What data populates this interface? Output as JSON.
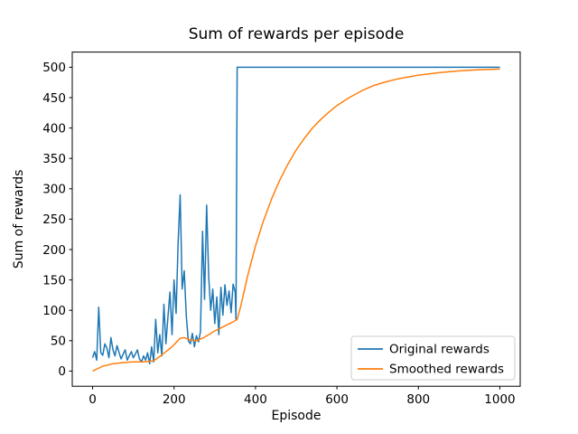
{
  "chart_data": {
    "type": "line",
    "title": "Sum of rewards per episode",
    "xlabel": "Episode",
    "ylabel": "Sum of rewards",
    "xlim": [
      -50,
      1050
    ],
    "ylim": [
      -25,
      525
    ],
    "xticks": [
      0,
      200,
      400,
      600,
      800,
      1000
    ],
    "yticks": [
      0,
      50,
      100,
      150,
      200,
      250,
      300,
      350,
      400,
      450,
      500
    ],
    "grid": false,
    "legend_position": "lower right",
    "series": [
      {
        "name": "Original rewards",
        "color": "#1f77b4",
        "points": [
          [
            0,
            22
          ],
          [
            5,
            32
          ],
          [
            10,
            18
          ],
          [
            15,
            105
          ],
          [
            20,
            30
          ],
          [
            25,
            26
          ],
          [
            30,
            45
          ],
          [
            35,
            38
          ],
          [
            40,
            22
          ],
          [
            45,
            55
          ],
          [
            50,
            35
          ],
          [
            55,
            25
          ],
          [
            60,
            42
          ],
          [
            65,
            30
          ],
          [
            70,
            20
          ],
          [
            75,
            28
          ],
          [
            80,
            35
          ],
          [
            85,
            18
          ],
          [
            90,
            25
          ],
          [
            95,
            32
          ],
          [
            100,
            22
          ],
          [
            105,
            28
          ],
          [
            110,
            35
          ],
          [
            115,
            20
          ],
          [
            120,
            15
          ],
          [
            125,
            25
          ],
          [
            130,
            18
          ],
          [
            135,
            30
          ],
          [
            140,
            12
          ],
          [
            145,
            40
          ],
          [
            150,
            15
          ],
          [
            155,
            85
          ],
          [
            160,
            30
          ],
          [
            165,
            60
          ],
          [
            170,
            25
          ],
          [
            175,
            110
          ],
          [
            180,
            45
          ],
          [
            185,
            90
          ],
          [
            190,
            130
          ],
          [
            195,
            60
          ],
          [
            200,
            150
          ],
          [
            205,
            95
          ],
          [
            210,
            210
          ],
          [
            215,
            290
          ],
          [
            220,
            135
          ],
          [
            225,
            165
          ],
          [
            230,
            90
          ],
          [
            235,
            50
          ],
          [
            240,
            45
          ],
          [
            245,
            62
          ],
          [
            250,
            40
          ],
          [
            255,
            58
          ],
          [
            260,
            48
          ],
          [
            265,
            65
          ],
          [
            270,
            230
          ],
          [
            275,
            118
          ],
          [
            280,
            273
          ],
          [
            285,
            155
          ],
          [
            290,
            100
          ],
          [
            295,
            135
          ],
          [
            300,
            78
          ],
          [
            305,
            122
          ],
          [
            310,
            60
          ],
          [
            315,
            138
          ],
          [
            320,
            92
          ],
          [
            325,
            142
          ],
          [
            330,
            108
          ],
          [
            335,
            132
          ],
          [
            340,
            96
          ],
          [
            345,
            143
          ],
          [
            350,
            130
          ],
          [
            352,
            85
          ],
          [
            355,
            500
          ],
          [
            1000,
            500
          ]
        ]
      },
      {
        "name": "Smoothed rewards",
        "color": "#ff7f0e",
        "points": [
          [
            0,
            0
          ],
          [
            25,
            8
          ],
          [
            50,
            12
          ],
          [
            75,
            14
          ],
          [
            100,
            15
          ],
          [
            125,
            15
          ],
          [
            150,
            17
          ],
          [
            165,
            24
          ],
          [
            180,
            32
          ],
          [
            195,
            40
          ],
          [
            205,
            47
          ],
          [
            215,
            54
          ],
          [
            225,
            55
          ],
          [
            240,
            51
          ],
          [
            255,
            50
          ],
          [
            270,
            54
          ],
          [
            285,
            60
          ],
          [
            300,
            66
          ],
          [
            315,
            71
          ],
          [
            330,
            76
          ],
          [
            345,
            81
          ],
          [
            355,
            85
          ],
          [
            365,
            110
          ],
          [
            380,
            155
          ],
          [
            400,
            206
          ],
          [
            420,
            248
          ],
          [
            440,
            284
          ],
          [
            460,
            315
          ],
          [
            480,
            341
          ],
          [
            500,
            364
          ],
          [
            520,
            383
          ],
          [
            540,
            400
          ],
          [
            560,
            414
          ],
          [
            580,
            426
          ],
          [
            600,
            437
          ],
          [
            630,
            450
          ],
          [
            660,
            461
          ],
          [
            690,
            470
          ],
          [
            720,
            476
          ],
          [
            750,
            481
          ],
          [
            800,
            487
          ],
          [
            850,
            491
          ],
          [
            900,
            494
          ],
          [
            950,
            496
          ],
          [
            1000,
            497
          ]
        ]
      }
    ]
  }
}
